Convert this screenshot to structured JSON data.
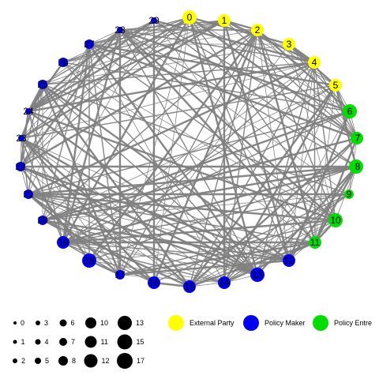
{
  "colors": {
    "external_party": "#ffff00",
    "policy_maker": "#0000ee",
    "policy_entre": "#00dd00",
    "edge": "#808080"
  },
  "nodes": [
    {
      "id": "0",
      "group": "external_party",
      "size": "large"
    },
    {
      "id": "1",
      "group": "external_party",
      "size": "medium"
    },
    {
      "id": "2",
      "group": "external_party",
      "size": "medium"
    },
    {
      "id": "3",
      "group": "external_party",
      "size": "medium"
    },
    {
      "id": "4",
      "group": "external_party",
      "size": "medium"
    },
    {
      "id": "5",
      "group": "external_party",
      "size": "medium"
    },
    {
      "id": "6",
      "group": "policy_entre",
      "size": "large"
    },
    {
      "id": "7",
      "group": "policy_entre",
      "size": "medium"
    },
    {
      "id": "8",
      "group": "policy_entre",
      "size": "large"
    },
    {
      "id": "9",
      "group": "policy_entre",
      "size": "small"
    },
    {
      "id": "10",
      "group": "policy_entre",
      "size": "large"
    },
    {
      "id": "11",
      "group": "policy_entre",
      "size": "medium"
    },
    {
      "id": "12",
      "group": "policy_maker",
      "size": "medium"
    },
    {
      "id": "13",
      "group": "policy_maker",
      "size": "large"
    },
    {
      "id": "14",
      "group": "policy_maker",
      "size": "medium"
    },
    {
      "id": "15",
      "group": "policy_maker",
      "size": "medium"
    },
    {
      "id": "16",
      "group": "policy_maker",
      "size": "medium"
    },
    {
      "id": "17",
      "group": "policy_maker",
      "size": "small"
    },
    {
      "id": "18",
      "group": "policy_maker",
      "size": "large"
    },
    {
      "id": "19",
      "group": "policy_maker",
      "size": "medium"
    },
    {
      "id": "20",
      "group": "policy_maker",
      "size": "small"
    },
    {
      "id": "21",
      "group": "policy_maker",
      "size": "small"
    },
    {
      "id": "22",
      "group": "policy_maker",
      "size": "small"
    },
    {
      "id": "23",
      "group": "policy_maker",
      "size": "tiny"
    },
    {
      "id": "24",
      "group": "policy_maker",
      "size": "tiny"
    },
    {
      "id": "25",
      "group": "policy_maker",
      "size": "small"
    },
    {
      "id": "26",
      "group": "policy_maker",
      "size": "small"
    },
    {
      "id": "27",
      "group": "policy_maker",
      "size": "small"
    },
    {
      "id": "28",
      "group": "policy_maker",
      "size": "tiny"
    },
    {
      "id": "29",
      "group": "policy_maker",
      "size": "tiny"
    }
  ],
  "size_legend": [
    {
      "label": "0"
    },
    {
      "label": "1"
    },
    {
      "label": "2"
    },
    {
      "label": "3"
    },
    {
      "label": "4"
    },
    {
      "label": "5"
    },
    {
      "label": "6"
    },
    {
      "label": "7"
    },
    {
      "label": "8"
    },
    {
      "label": "10"
    },
    {
      "label": "11"
    },
    {
      "label": "12"
    },
    {
      "label": "13"
    },
    {
      "label": "15"
    },
    {
      "label": "17"
    }
  ],
  "color_legend": [
    {
      "group": "external_party",
      "label": "External Party"
    },
    {
      "group": "policy_maker",
      "label": "Policy Maker"
    },
    {
      "group": "policy_entre",
      "label": "Policy Entre"
    }
  ]
}
